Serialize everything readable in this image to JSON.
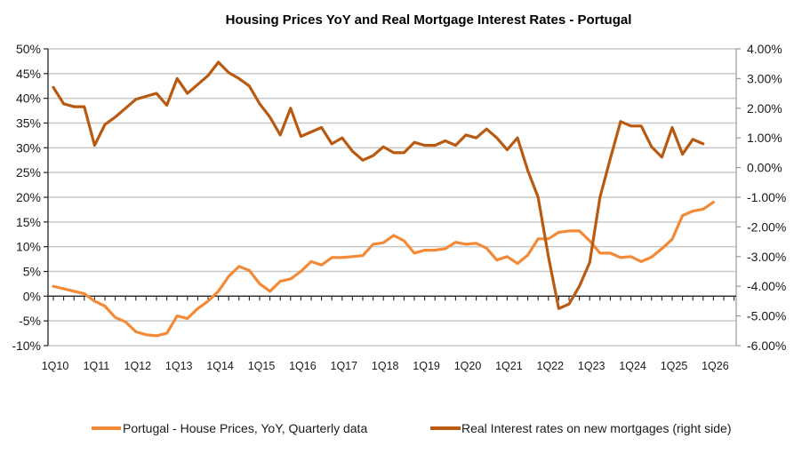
{
  "colors": {
    "house_prices": "#F28A37",
    "real_rates": "#B85A12",
    "grid": "#C8C8C8",
    "axis": "#222222"
  },
  "chart_data": {
    "type": "line",
    "title": "Housing Prices YoY and Real Mortgage Interest Rates -  Portugal",
    "xlabel": "",
    "ylabel_left": "",
    "ylabel_right": "",
    "grid": true,
    "legend_position": "bottom",
    "left_axis": {
      "ylim": [
        -10,
        50
      ],
      "ticks": [
        "50%",
        "45%",
        "40%",
        "35%",
        "30%",
        "25%",
        "20%",
        "15%",
        "10%",
        "5%",
        "0%",
        "-5%",
        "-10%"
      ],
      "tick_values": [
        50,
        45,
        40,
        35,
        30,
        25,
        20,
        15,
        10,
        5,
        0,
        -5,
        -10
      ]
    },
    "right_axis": {
      "ylim": [
        -6,
        4
      ],
      "ticks": [
        "4.00%",
        "3.00%",
        "2.00%",
        "1.00%",
        "0.00%",
        "-1.00%",
        "-2.00%",
        "-3.00%",
        "-4.00%",
        "-5.00%",
        "-6.00%"
      ],
      "tick_values": [
        4,
        3,
        2,
        1,
        0,
        -1,
        -2,
        -3,
        -4,
        -5,
        -6
      ]
    },
    "x_tick_labels": [
      "1Q10",
      "1Q11",
      "1Q12",
      "1Q13",
      "1Q14",
      "1Q15",
      "1Q16",
      "1Q17",
      "1Q18",
      "1Q19",
      "1Q20",
      "1Q21",
      "1Q22",
      "1Q23",
      "1Q24",
      "1Q25",
      "1Q26"
    ],
    "x_tick_indices": [
      0,
      4,
      8,
      12,
      16,
      20,
      24,
      28,
      32,
      36,
      40,
      44,
      48,
      52,
      56,
      60,
      64
    ],
    "x_range_quarters": [
      0,
      66
    ],
    "series": [
      {
        "name": "Portugal - House Prices, YoY, Quarterly data",
        "axis": "left",
        "values": [
          2.0,
          1.5,
          1.0,
          0.5,
          -1.0,
          -2.0,
          -4.3,
          -5.2,
          -7.2,
          -7.8,
          -8.0,
          -7.5,
          -4.0,
          -4.5,
          -2.5,
          -1.0,
          1.0,
          4.0,
          6.0,
          5.2,
          2.5,
          1.0,
          3.0,
          3.5,
          5.0,
          7.0,
          6.3,
          7.8,
          7.8,
          8.0,
          8.2,
          10.5,
          10.8,
          12.3,
          11.2,
          8.7,
          9.3,
          9.3,
          9.6,
          10.9,
          10.5,
          10.7,
          9.7,
          7.3,
          8.0,
          6.6,
          8.3,
          11.6,
          11.6,
          12.9,
          13.2,
          13.2,
          11.2,
          8.7,
          8.7,
          7.8,
          8.0,
          7.0,
          7.9,
          9.6,
          11.5,
          16.3,
          17.2,
          17.6,
          19.0
        ]
      },
      {
        "name": "Real Interest rates on new mortgages (right side)",
        "axis": "right",
        "values": [
          2.7,
          2.15,
          2.05,
          2.05,
          0.75,
          1.45,
          1.7,
          2.0,
          2.3,
          2.4,
          2.5,
          2.1,
          3.0,
          2.5,
          2.8,
          3.1,
          3.55,
          3.2,
          3.0,
          2.75,
          2.15,
          1.7,
          1.1,
          2.0,
          1.05,
          1.2,
          1.35,
          0.8,
          1.0,
          0.55,
          0.25,
          0.4,
          0.7,
          0.5,
          0.5,
          0.85,
          0.75,
          0.75,
          0.9,
          0.75,
          1.1,
          1.0,
          1.3,
          1.0,
          0.6,
          1.0,
          -0.1,
          -1.0,
          -3.0,
          -4.75,
          -4.6,
          -4.0,
          -3.2,
          -1.0,
          0.3,
          1.55,
          1.4,
          1.4,
          0.7,
          0.35,
          1.35,
          0.45,
          0.95,
          0.8
        ]
      }
    ]
  }
}
